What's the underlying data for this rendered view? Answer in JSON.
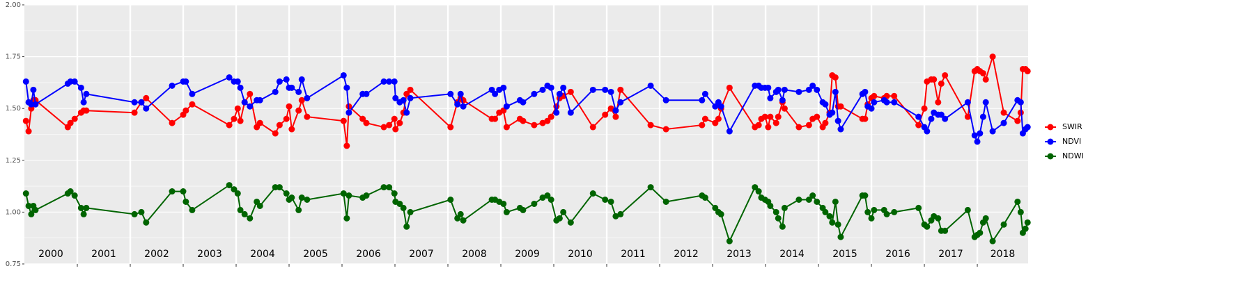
{
  "chart_data": {
    "type": "line",
    "x": [
      2000.03,
      2000.08,
      2000.13,
      2000.17,
      2000.21,
      2000.82,
      2000.87,
      2000.95,
      2001.07,
      2001.12,
      2001.17,
      2002.08,
      2002.21,
      2002.3,
      2002.79,
      2003.0,
      2003.05,
      2003.17,
      2003.87,
      2003.96,
      2004.03,
      2004.08,
      2004.16,
      2004.26,
      2004.39,
      2004.45,
      2004.74,
      2004.82,
      2004.95,
      2005.0,
      2005.05,
      2005.18,
      2005.24,
      2005.34,
      2006.03,
      2006.09,
      2006.13,
      2006.39,
      2006.46,
      2006.79,
      2006.89,
      2006.99,
      2007.01,
      2007.09,
      2007.16,
      2007.22,
      2007.29,
      2008.05,
      2008.18,
      2008.24,
      2008.29,
      2008.83,
      2008.89,
      2008.97,
      2009.05,
      2009.11,
      2009.36,
      2009.42,
      2009.63,
      2009.79,
      2009.88,
      2009.95,
      2010.05,
      2010.11,
      2010.18,
      2010.32,
      2010.74,
      2010.97,
      2011.08,
      2011.17,
      2011.26,
      2011.83,
      2012.12,
      2012.8,
      2012.86,
      2013.05,
      2013.11,
      2013.16,
      2013.32,
      2013.8,
      2013.87,
      2013.92,
      2013.99,
      2014.05,
      2014.09,
      2014.2,
      2014.24,
      2014.32,
      2014.36,
      2014.63,
      2014.82,
      2014.89,
      2014.97,
      2015.08,
      2015.13,
      2015.21,
      2015.26,
      2015.32,
      2015.37,
      2015.42,
      2015.83,
      2015.88,
      2015.93,
      2016.0,
      2016.05,
      2016.24,
      2016.29,
      2016.43,
      2016.89,
      2017.0,
      2017.05,
      2017.13,
      2017.18,
      2017.26,
      2017.32,
      2017.39,
      2017.82,
      2017.95,
      2018.0,
      2018.05,
      2018.11,
      2018.16,
      2018.29,
      2018.5,
      2018.76,
      2018.82,
      2018.86,
      2018.91,
      2018.95
    ],
    "series": [
      {
        "name": "SWIR",
        "color": "#ff0000",
        "values": [
          1.44,
          1.39,
          1.5,
          1.54,
          1.54,
          1.41,
          1.43,
          1.45,
          1.48,
          1.49,
          1.49,
          1.48,
          1.53,
          1.55,
          1.43,
          1.47,
          1.49,
          1.52,
          1.42,
          1.45,
          1.5,
          1.44,
          1.53,
          1.57,
          1.41,
          1.43,
          1.38,
          1.42,
          1.45,
          1.51,
          1.4,
          1.49,
          1.54,
          1.46,
          1.44,
          1.32,
          1.51,
          1.45,
          1.43,
          1.41,
          1.42,
          1.45,
          1.4,
          1.43,
          1.48,
          1.57,
          1.59,
          1.41,
          1.53,
          1.55,
          1.54,
          1.45,
          1.45,
          1.48,
          1.49,
          1.41,
          1.45,
          1.44,
          1.42,
          1.43,
          1.44,
          1.46,
          1.51,
          1.55,
          1.56,
          1.58,
          1.41,
          1.47,
          1.5,
          1.46,
          1.59,
          1.42,
          1.4,
          1.42,
          1.45,
          1.43,
          1.45,
          1.5,
          1.6,
          1.41,
          1.42,
          1.45,
          1.46,
          1.41,
          1.46,
          1.43,
          1.46,
          1.53,
          1.5,
          1.41,
          1.42,
          1.45,
          1.46,
          1.41,
          1.43,
          1.48,
          1.66,
          1.65,
          1.51,
          1.51,
          1.45,
          1.45,
          1.52,
          1.55,
          1.56,
          1.55,
          1.56,
          1.56,
          1.42,
          1.5,
          1.63,
          1.64,
          1.64,
          1.53,
          1.62,
          1.66,
          1.46,
          1.68,
          1.69,
          1.68,
          1.67,
          1.64,
          1.75,
          1.48,
          1.44,
          1.48,
          1.69,
          1.69,
          1.68
        ]
      },
      {
        "name": "NDVI",
        "color": "#0000ff",
        "values": [
          1.63,
          1.53,
          1.52,
          1.59,
          1.52,
          1.62,
          1.63,
          1.63,
          1.6,
          1.53,
          1.57,
          1.53,
          1.53,
          1.5,
          1.61,
          1.63,
          1.63,
          1.57,
          1.65,
          1.63,
          1.63,
          1.6,
          1.53,
          1.51,
          1.54,
          1.54,
          1.58,
          1.63,
          1.64,
          1.6,
          1.6,
          1.58,
          1.64,
          1.55,
          1.66,
          1.6,
          1.48,
          1.57,
          1.57,
          1.63,
          1.63,
          1.63,
          1.55,
          1.53,
          1.54,
          1.48,
          1.55,
          1.57,
          1.52,
          1.57,
          1.51,
          1.59,
          1.57,
          1.59,
          1.6,
          1.51,
          1.54,
          1.53,
          1.57,
          1.59,
          1.61,
          1.6,
          1.48,
          1.57,
          1.6,
          1.48,
          1.59,
          1.59,
          1.58,
          1.49,
          1.53,
          1.61,
          1.54,
          1.54,
          1.57,
          1.51,
          1.53,
          1.51,
          1.39,
          1.61,
          1.61,
          1.6,
          1.6,
          1.6,
          1.55,
          1.58,
          1.59,
          1.54,
          1.59,
          1.58,
          1.59,
          1.61,
          1.59,
          1.53,
          1.52,
          1.47,
          1.48,
          1.58,
          1.44,
          1.4,
          1.57,
          1.58,
          1.51,
          1.5,
          1.53,
          1.54,
          1.53,
          1.53,
          1.46,
          1.41,
          1.39,
          1.45,
          1.48,
          1.47,
          1.47,
          1.45,
          1.53,
          1.37,
          1.34,
          1.38,
          1.46,
          1.53,
          1.39,
          1.43,
          1.54,
          1.53,
          1.38,
          1.4,
          1.41
        ]
      },
      {
        "name": "NDWI",
        "color": "#006400",
        "values": [
          1.09,
          1.03,
          0.99,
          1.03,
          1.01,
          1.09,
          1.1,
          1.08,
          1.02,
          0.99,
          1.02,
          0.99,
          1.0,
          0.95,
          1.1,
          1.1,
          1.05,
          1.01,
          1.13,
          1.11,
          1.09,
          1.01,
          0.99,
          0.97,
          1.05,
          1.03,
          1.12,
          1.12,
          1.09,
          1.06,
          1.07,
          1.01,
          1.07,
          1.06,
          1.09,
          0.97,
          1.08,
          1.07,
          1.08,
          1.12,
          1.12,
          1.09,
          1.05,
          1.04,
          1.02,
          0.93,
          1.0,
          1.06,
          0.97,
          0.99,
          0.96,
          1.06,
          1.06,
          1.05,
          1.04,
          1.0,
          1.02,
          1.01,
          1.04,
          1.07,
          1.08,
          1.06,
          0.96,
          0.97,
          1.0,
          0.95,
          1.09,
          1.06,
          1.05,
          0.98,
          0.99,
          1.12,
          1.05,
          1.08,
          1.07,
          1.02,
          1.0,
          0.99,
          0.86,
          1.12,
          1.1,
          1.07,
          1.06,
          1.05,
          1.03,
          1.0,
          0.97,
          0.93,
          1.02,
          1.06,
          1.06,
          1.08,
          1.05,
          1.02,
          1.0,
          0.98,
          0.95,
          1.05,
          0.94,
          0.88,
          1.08,
          1.08,
          1.0,
          0.97,
          1.01,
          1.01,
          0.99,
          1.0,
          1.02,
          0.94,
          0.93,
          0.96,
          0.98,
          0.97,
          0.91,
          0.91,
          1.01,
          0.88,
          0.89,
          0.9,
          0.95,
          0.97,
          0.86,
          0.94,
          1.05,
          1.0,
          0.9,
          0.92,
          0.95
        ]
      }
    ],
    "xlim": [
      2000,
      2018.96
    ],
    "xticks": [
      2001,
      2002,
      2003,
      2004,
      2005,
      2006,
      2007,
      2008,
      2009,
      2010,
      2011,
      2012,
      2013,
      2014,
      2015,
      2016,
      2017,
      2018
    ],
    "year_labels": [
      "2000",
      "2001",
      "2002",
      "2003",
      "2004",
      "2005",
      "2006",
      "2007",
      "2008",
      "2009",
      "2010",
      "2011",
      "2012",
      "2013",
      "2014",
      "2015",
      "2016",
      "2017",
      "2018"
    ],
    "ylim": [
      0.75,
      2.0
    ],
    "yticks": [
      0.75,
      {
        "value": 1.0,
        "label": "1.00"
      },
      1.25,
      {
        "value": 1.5,
        "label": "1.50"
      },
      1.75,
      {
        "value": 2.0,
        "label": "2.00"
      }
    ],
    "grid": true,
    "legend": "right"
  }
}
